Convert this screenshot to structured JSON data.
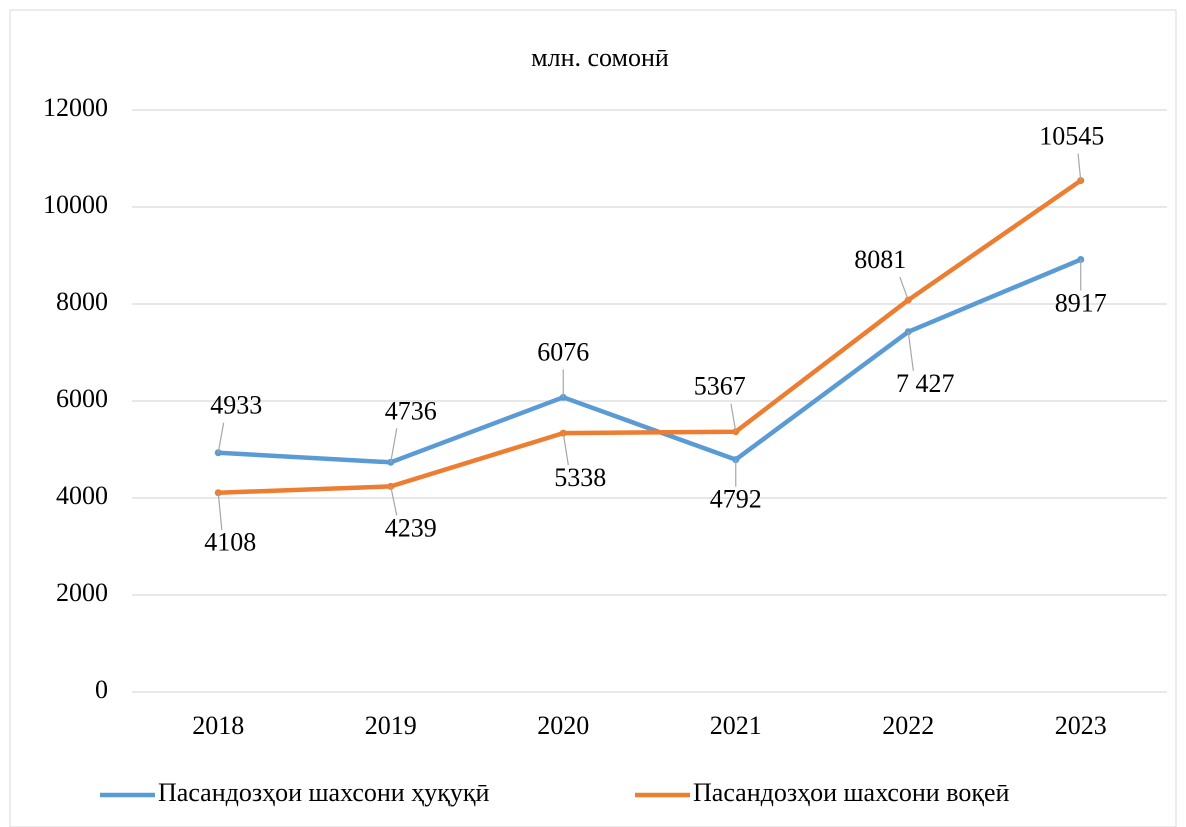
{
  "chart_data": {
    "type": "line",
    "title": "млн. сомонӣ",
    "categories": [
      "2018",
      "2019",
      "2020",
      "2021",
      "2022",
      "2023"
    ],
    "series": [
      {
        "name": "Пасандозҳои шахсони ҳуқуқӣ",
        "color": "#5b9bd5",
        "values": [
          4933,
          4736,
          6076,
          4792,
          7427,
          8917
        ],
        "value_labels": [
          "4933",
          "4736",
          "6076",
          "4792",
          "7 427",
          "8917"
        ]
      },
      {
        "name": "Пасандозҳои шахсони воқеӣ",
        "color": "#ed7d31",
        "values": [
          4108,
          4239,
          5338,
          5367,
          8081,
          10545
        ]
      }
    ],
    "ylim": [
      0,
      12000
    ],
    "yticks": [
      0,
      2000,
      4000,
      6000,
      8000,
      10000,
      12000
    ],
    "grid": true,
    "legend": "bottom"
  }
}
